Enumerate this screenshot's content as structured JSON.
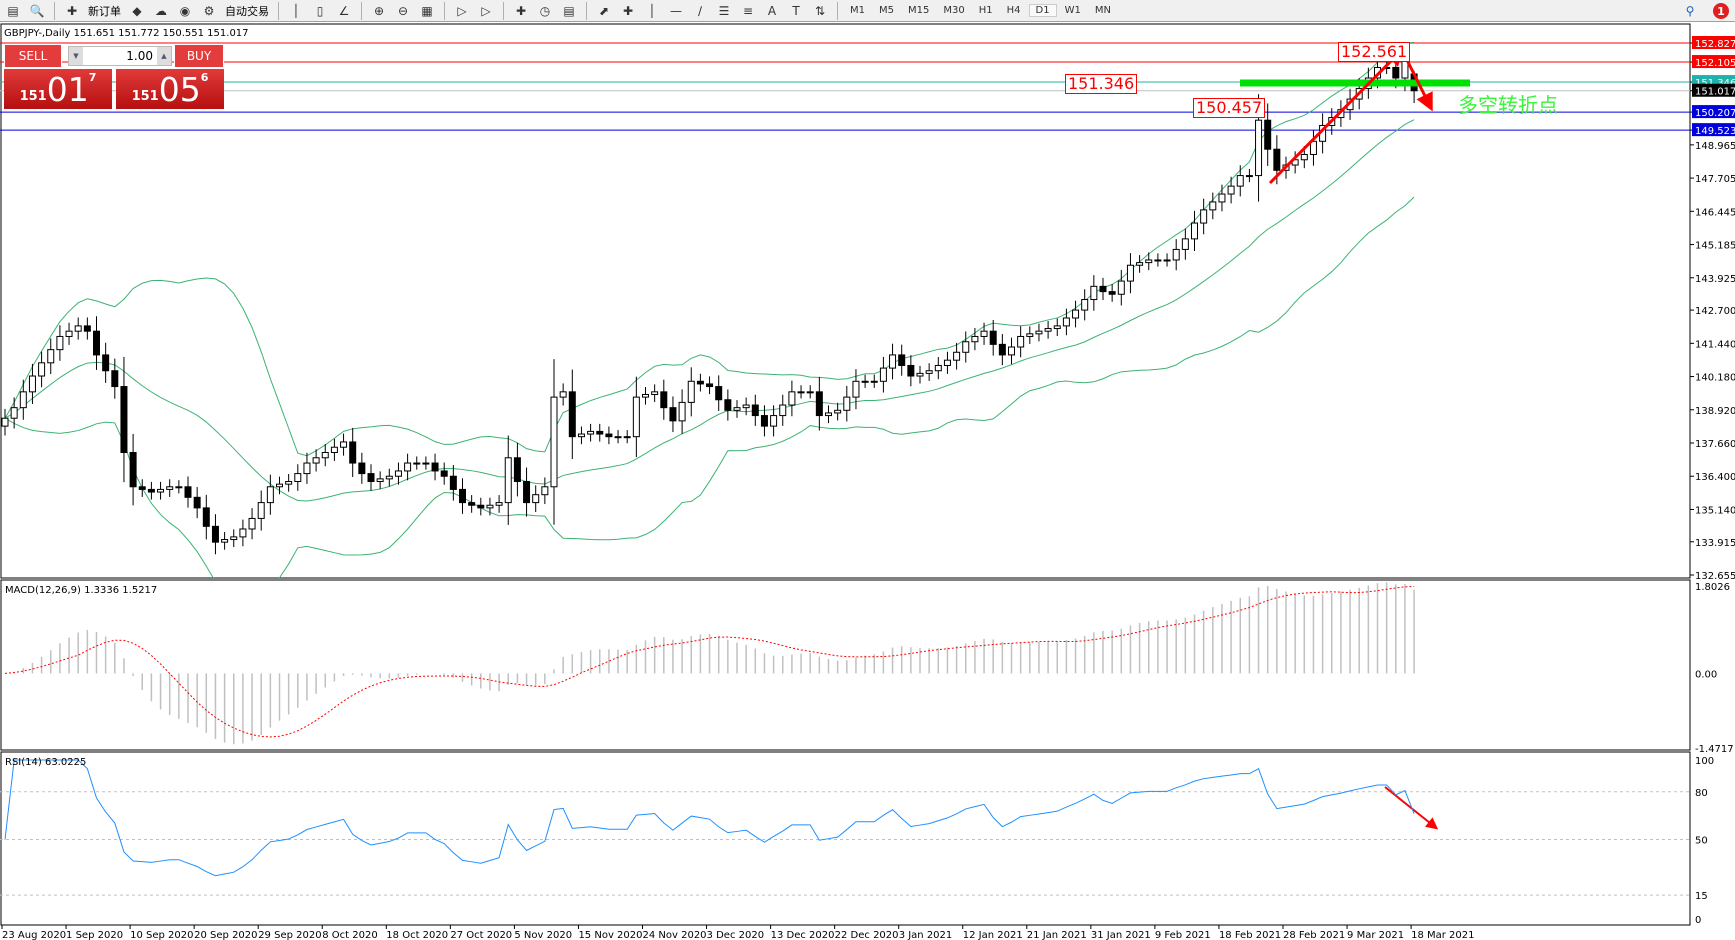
{
  "toolbar": {
    "new_order": "新订单",
    "auto_trading": "自动交易",
    "timeframes": [
      "M1",
      "M5",
      "M15",
      "M30",
      "H1",
      "H4",
      "D1",
      "W1",
      "MN"
    ],
    "active_timeframe": "D1",
    "notification_count": "1",
    "icons": [
      "window-icon",
      "zoom-window-icon",
      "new-order-icon",
      "market-watch-icon",
      "navigator-icon",
      "signals-icon",
      "auto-trading-icon",
      "bar-chart-icon",
      "candle-chart-icon",
      "line-chart-icon",
      "zoom-in-icon",
      "zoom-out-icon",
      "tile-windows-icon",
      "autoscroll-icon",
      "chart-shift-icon",
      "indicators-icon",
      "periods-icon",
      "templates-icon",
      "cursor-icon",
      "crosshair-icon",
      "vertical-line-icon",
      "horizontal-line-icon",
      "trendline-icon",
      "fibonacci-fan-icon",
      "fibonacci-icon",
      "text-icon",
      "text-label-icon",
      "arrows-icon"
    ]
  },
  "chart": {
    "title": "GBPJPY-,Daily  151.651 151.772 150.551 151.017"
  },
  "oneclick": {
    "sell": "SELL",
    "buy": "BUY",
    "lot": "1.00",
    "sell_prefix": "151",
    "sell_big": "01",
    "sell_pip": "7",
    "buy_prefix": "151",
    "buy_big": "05",
    "buy_pip": "6"
  },
  "annotations": {
    "label_high": "152.561",
    "label_mid": "151.346",
    "label_low": "150.457",
    "note": "多空转折点"
  },
  "colors": {
    "bull_bear": "#000000",
    "bands": "#3cb371",
    "macd_hist": "#c0c0c0",
    "macd_signal": "#ff0000",
    "rsi": "#1e90ff",
    "arrow": "#ff0000",
    "pivot_line": "#00e000"
  },
  "chart_data": {
    "type": "candlestick",
    "symbol": "GBPJPY-",
    "timeframe": "Daily",
    "ohlc_last": {
      "open": 151.651,
      "high": 151.772,
      "low": 150.551,
      "close": 151.017
    },
    "ylim": [
      132.655,
      152.827
    ],
    "price_ticks": [
      "152.827",
      "152.105",
      "151.346",
      "151.017",
      "150.207",
      "149.523",
      "148.965",
      "147.705",
      "146.445",
      "145.185",
      "143.925",
      "142.700",
      "141.440",
      "140.180",
      "138.920",
      "137.660",
      "136.400",
      "135.140",
      "133.915",
      "132.655"
    ],
    "levels": [
      {
        "price": 152.827,
        "color": "#ff0000"
      },
      {
        "price": 152.105,
        "color": "#ff0000"
      },
      {
        "price": 151.346,
        "color": "#20b2aa"
      },
      {
        "price": 151.017,
        "color": "#000000",
        "line": "#c0c0c0"
      },
      {
        "price": 150.207,
        "color": "#0000dd"
      },
      {
        "price": 149.523,
        "color": "#0000dd"
      }
    ],
    "date_labels": [
      "23 Aug 2020",
      "1 Sep 2020",
      "10 Sep 2020",
      "20 Sep 2020",
      "29 Sep 2020",
      "8 Oct 2020",
      "18 Oct 2020",
      "27 Oct 2020",
      "5 Nov 2020",
      "15 Nov 2020",
      "24 Nov 2020",
      "3 Dec 2020",
      "13 Dec 2020",
      "22 Dec 2020",
      "3 Jan 2021",
      "12 Jan 2021",
      "21 Jan 2021",
      "31 Jan 2021",
      "9 Feb 2021",
      "18 Feb 2021",
      "28 Feb 2021",
      "9 Mar 2021",
      "18 Mar 2021"
    ],
    "close": [
      138.6,
      139.0,
      139.6,
      140.2,
      140.7,
      141.2,
      141.7,
      141.9,
      142.1,
      141.9,
      141.0,
      140.4,
      139.8,
      137.3,
      136.0,
      135.9,
      135.8,
      135.9,
      136.0,
      136.0,
      135.6,
      135.2,
      134.5,
      133.9,
      134.0,
      134.1,
      134.4,
      134.8,
      135.4,
      136.0,
      136.1,
      136.2,
      136.5,
      136.9,
      137.1,
      137.3,
      137.5,
      137.7,
      136.9,
      136.5,
      136.2,
      136.3,
      136.4,
      136.6,
      136.9,
      136.9,
      136.9,
      136.6,
      136.4,
      135.9,
      135.4,
      135.3,
      135.2,
      135.3,
      135.4,
      137.1,
      136.2,
      135.4,
      135.7,
      136.0,
      139.4,
      139.6,
      137.9,
      138.0,
      138.1,
      138.0,
      137.9,
      137.9,
      137.9,
      139.4,
      139.5,
      139.6,
      139.0,
      138.5,
      139.2,
      140.0,
      139.9,
      139.8,
      139.3,
      138.9,
      139.0,
      139.1,
      138.7,
      138.3,
      138.7,
      139.1,
      139.6,
      139.6,
      139.6,
      138.7,
      138.8,
      138.9,
      139.4,
      140.0,
      140.0,
      140.0,
      140.5,
      141.0,
      140.6,
      140.2,
      140.3,
      140.4,
      140.6,
      140.8,
      141.1,
      141.5,
      141.7,
      141.9,
      141.4,
      141.0,
      141.3,
      141.7,
      141.8,
      141.9,
      142.0,
      142.1,
      142.4,
      142.7,
      143.1,
      143.6,
      143.4,
      143.3,
      143.8,
      144.4,
      144.5,
      144.6,
      144.6,
      144.6,
      145.0,
      145.4,
      146.0,
      146.5,
      146.8,
      147.1,
      147.4,
      147.8,
      147.8,
      149.9,
      148.8,
      148.0,
      148.2,
      148.4,
      148.6,
      149.1,
      149.7,
      150.0,
      150.3,
      150.7,
      151.1,
      151.5,
      151.9,
      151.9,
      151.5,
      152.2,
      151.017
    ],
    "indicators": {
      "bollinger": {
        "period": 20,
        "deviation": 2
      },
      "macd": {
        "label": "MACD(12,26,9) 1.3336 1.5217",
        "ylim": [
          -1.4717,
          1.8026
        ],
        "ticks": [
          "1.8026",
          "0.00",
          "-1.4717"
        ]
      },
      "rsi": {
        "label": "RSI(14) 63.0225",
        "ylim": [
          0,
          100
        ],
        "ticks": [
          "100",
          "80",
          "50",
          "15",
          "0"
        ],
        "levels": [
          80,
          50,
          15
        ]
      }
    }
  }
}
